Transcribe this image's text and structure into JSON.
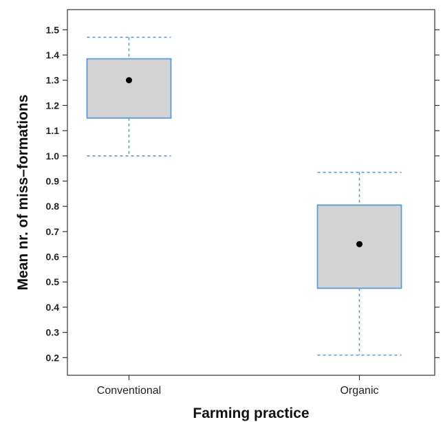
{
  "chart_data": {
    "type": "box",
    "xlabel": "Farming practice",
    "ylabel": "Mean nr. of miss–formations",
    "ylim": [
      0.13,
      1.58
    ],
    "yticks": [
      0.2,
      0.3,
      0.4,
      0.5,
      0.6,
      0.7,
      0.8,
      0.9,
      1.0,
      1.1,
      1.2,
      1.3,
      1.4,
      1.5
    ],
    "ytick_labels": [
      "0.2",
      "0.3",
      "0.4",
      "0.5",
      "0.6",
      "0.7",
      "0.8",
      "0.9",
      "1.0",
      "1.1",
      "1.2",
      "1.3",
      "1.4",
      "1.5"
    ],
    "categories": [
      "Conventional",
      "Organic"
    ],
    "boxes": [
      {
        "category": "Conventional",
        "whisker_low": 1.0,
        "q1": 1.15,
        "center": 1.3,
        "q3": 1.385,
        "whisker_high": 1.47
      },
      {
        "category": "Organic",
        "whisker_low": 0.21,
        "q1": 0.475,
        "center": 0.65,
        "q3": 0.805,
        "whisker_high": 0.935
      }
    ],
    "grid": false,
    "colors": {
      "box_fill": "#d3d3d3",
      "box_edge": "#5b9bd5",
      "whisker": "#5b9bd5",
      "center_point": "#000000",
      "frame": "#333333"
    }
  }
}
